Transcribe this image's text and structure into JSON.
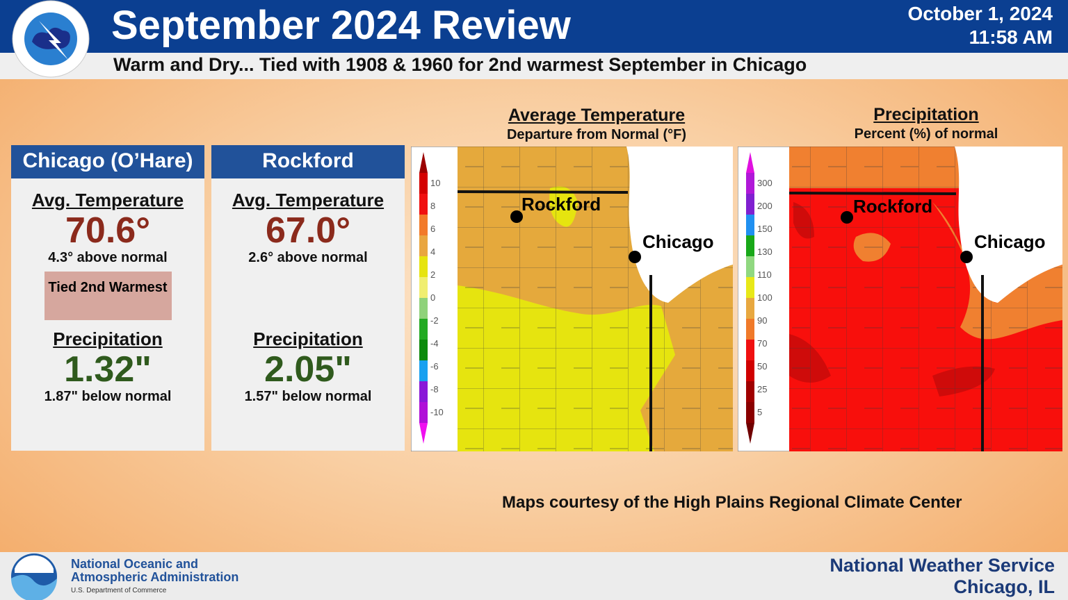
{
  "header": {
    "title": "September 2024 Review",
    "date": "October 1, 2024",
    "time": "11:58 AM",
    "subtitle": "Warm and Dry... Tied with 1908 & 1960 for 2nd warmest September in Chicago"
  },
  "panels": [
    {
      "name": "Chicago (O’Hare)",
      "temp_label": "Avg. Temperature",
      "temp": "70.6°",
      "temp_note": "4.3° above normal",
      "badge": "Tied 2nd Warmest",
      "precip_label": "Precipitation",
      "precip": "1.32\"",
      "precip_note": "1.87\" below normal"
    },
    {
      "name": "Rockford",
      "temp_label": "Avg. Temperature",
      "temp": "67.0°",
      "temp_note": "2.6° above normal",
      "precip_label": "Precipitation",
      "precip": "2.05\"",
      "precip_note": "1.57\" below normal"
    }
  ],
  "maps": [
    {
      "title": "Average Temperature",
      "subtitle": "Departure from Normal (°F)",
      "legend": [
        "10",
        "8",
        "6",
        "4",
        "2",
        "0",
        "-2",
        "-4",
        "-6",
        "-8",
        "-10"
      ],
      "cities": [
        "Rockford",
        "Chicago"
      ]
    },
    {
      "title": "Precipitation",
      "subtitle": "Percent (%) of normal",
      "legend": [
        "300",
        "200",
        "150",
        "130",
        "110",
        "100",
        "90",
        "70",
        "50",
        "25",
        "5"
      ],
      "cities": [
        "Rockford",
        "Chicago"
      ]
    }
  ],
  "credit": "Maps courtesy of the High Plains Regional Climate Center",
  "footer": {
    "org_line1": "National Oceanic and",
    "org_line2": "Atmospheric Administration",
    "dept": "U.S. Department of Commerce",
    "office": "National Weather Service",
    "city": "Chicago, IL"
  }
}
